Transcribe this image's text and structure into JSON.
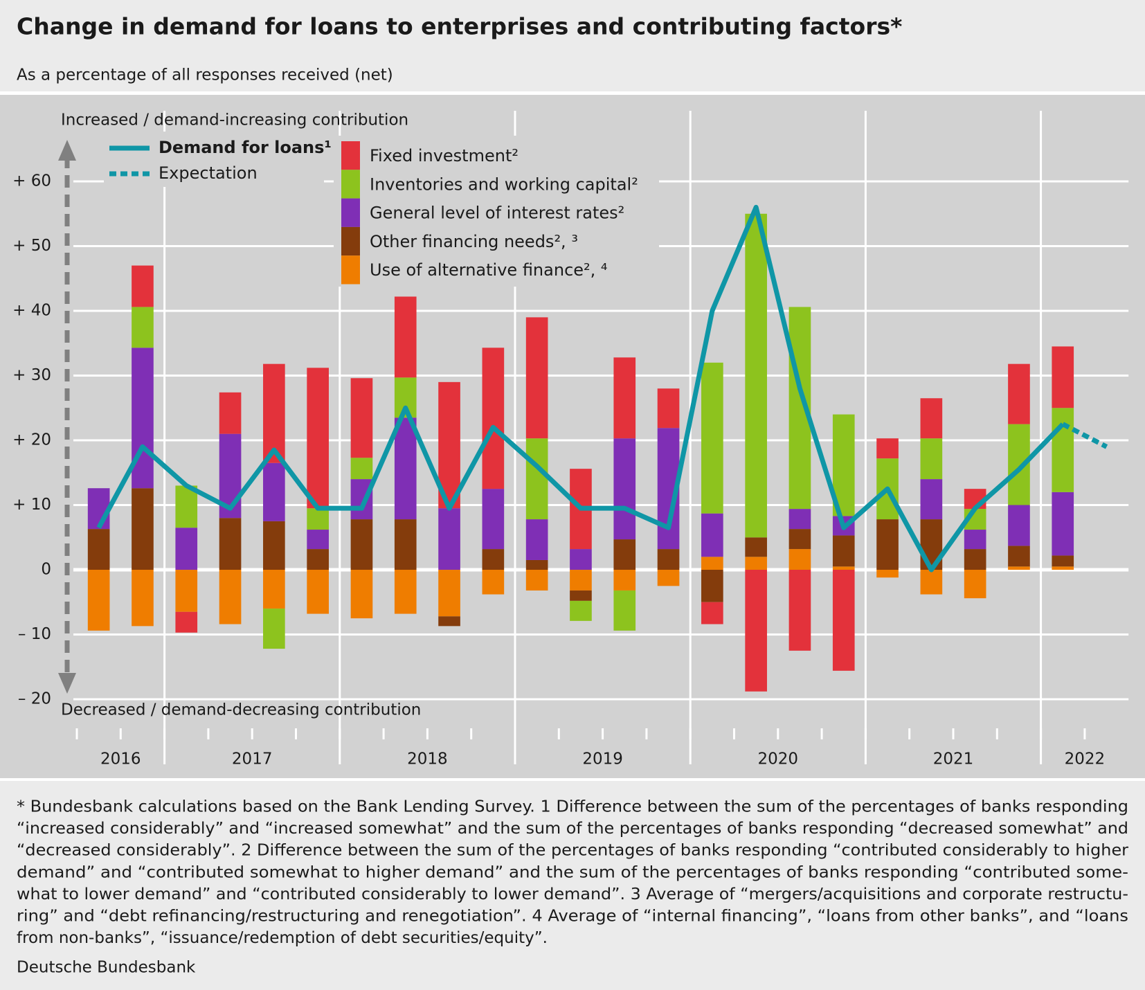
{
  "chart_data": {
    "type": "bar",
    "title": "Change in demand for loans to enterprises and contributing factors*",
    "subtitle": "As a percentage of all responses received (net)",
    "upper_label": "Increased / demand-increasing contribution",
    "lower_label": "Decreased / demand-decreasing contribution",
    "categories": [
      null,
      null,
      null,
      null,
      null,
      null,
      null,
      null,
      null,
      null,
      null,
      null,
      null,
      null,
      null,
      null,
      null,
      null,
      null,
      null,
      null,
      null,
      null,
      null
    ],
    "year_labels": [
      "2016",
      "2017",
      "2018",
      "2019",
      "2020",
      "2021",
      "2022"
    ],
    "ylim": [
      -20,
      60
    ],
    "yticks": [
      {
        "value": -20,
        "label": "– 20"
      },
      {
        "value": -10,
        "label": "– 10"
      },
      0,
      {
        "value": 10,
        "label": "+ 10"
      },
      {
        "value": 20,
        "label": "+ 20"
      },
      {
        "value": 30,
        "label": "+ 30"
      },
      {
        "value": 40,
        "label": "+ 40"
      },
      {
        "value": 50,
        "label": "+ 50"
      },
      {
        "value": 60,
        "label": "+ 60"
      }
    ],
    "grid": true,
    "series": [
      {
        "name": "Fixed investment²",
        "type": "bar",
        "color": "#e3323b",
        "values": [
          0,
          6.4,
          -3.2,
          6.4,
          15.3,
          21.7,
          12.3,
          12.5,
          19.5,
          21.8,
          18.7,
          12.4,
          12.5,
          6.1,
          -3.4,
          -18.8,
          -12.5,
          -15.6,
          3.1,
          6.2,
          3.1,
          9.3,
          9.5,
          null
        ]
      },
      {
        "name": "Inventories and working capital²",
        "type": "bar",
        "color": "#8dc31e",
        "values": [
          0,
          6.3,
          6.5,
          0,
          -6.2,
          3.3,
          3.3,
          6.2,
          0,
          0,
          12.5,
          -3.1,
          -6.2,
          0,
          23.3,
          50,
          31.2,
          15.7,
          9.4,
          6.3,
          3.2,
          12.5,
          13,
          null
        ]
      },
      {
        "name": "General level of interest rates²",
        "type": "bar",
        "color": "#7f2fb5",
        "values": [
          6.3,
          21.7,
          6.5,
          13,
          9,
          3,
          6.2,
          15.7,
          9.5,
          9.3,
          6.3,
          3.2,
          15.6,
          18.7,
          6.7,
          0,
          3.1,
          3,
          0,
          6.2,
          3,
          6.3,
          9.8,
          null
        ]
      },
      {
        "name": "Other financing needs², ³",
        "type": "bar",
        "color": "#843c0c",
        "values": [
          6.3,
          12.6,
          0,
          8,
          7.5,
          3.2,
          7.8,
          7.8,
          -1.5,
          3.2,
          1.5,
          -1.6,
          4.7,
          3.2,
          -5,
          3,
          3.1,
          4.8,
          7.8,
          7.8,
          3.2,
          3.2,
          1.7,
          null
        ]
      },
      {
        "name": "Use of alternative finance², ⁴",
        "type": "bar",
        "color": "#ef7d00",
        "values": [
          -9.4,
          -8.7,
          -6.5,
          -8.4,
          -6,
          -6.8,
          -7.5,
          -6.8,
          -7.2,
          -3.8,
          -3.2,
          -3.2,
          -3.2,
          -2.5,
          2,
          2,
          3.2,
          0.5,
          -1.2,
          -3.8,
          -4.4,
          0.5,
          0.5,
          null
        ]
      },
      {
        "name": "Demand for loans¹",
        "type": "line",
        "color": "#0f96a6",
        "values": [
          6.5,
          19,
          13,
          9.5,
          18.5,
          9.5,
          9.5,
          25,
          9.5,
          22,
          16,
          9.5,
          9.5,
          6.5,
          40,
          56,
          28,
          6.5,
          12.5,
          0,
          9.5,
          15.5,
          22.5,
          null
        ]
      },
      {
        "name": "Expectation",
        "type": "line",
        "style": "dashed",
        "color": "#0f96a6",
        "values": [
          null,
          null,
          null,
          null,
          null,
          null,
          null,
          null,
          null,
          null,
          null,
          null,
          null,
          null,
          null,
          null,
          null,
          null,
          null,
          null,
          null,
          null,
          22.5,
          19
        ]
      }
    ],
    "footnote_lines": [
      "* Bundesbank calculations based on the Bank Lending Survey. 1 Difference between the sum of the percentages of banks responding",
      "“increased considerably” and “increased somewhat” and the sum of the percentages of banks responding “decreased somewhat” and",
      "“decreased considerably”. 2 Difference between the sum of the percentages of banks responding “contributed considerably to higher",
      "demand” and “contributed somewhat to higher demand” and the sum of the percentages of banks responding “contributed some-",
      "what to lower demand” and “contributed considerably to lower demand”. 3 Average of “mergers/acquisitions and corporate restructu-",
      "ring” and “debt refinancing/restructuring and renegotiation”. 4 Average of “internal financing”, “loans from other banks”, and “loans",
      "from non-banks”, “issuance/redemption of debt securities/equity”."
    ],
    "source": "Deutsche Bundesbank"
  }
}
